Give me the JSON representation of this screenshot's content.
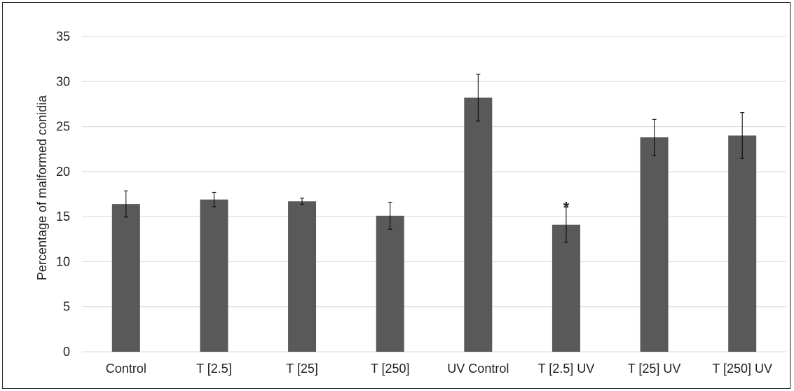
{
  "chart_data": {
    "type": "bar",
    "title": "",
    "xlabel": "",
    "ylabel": "Percentage of  malformed conidia",
    "categories": [
      "Control",
      "T [2.5]",
      "T [25]",
      "T [250]",
      "UV Control",
      "T [2.5] UV",
      "T [25] UV",
      "T [250] UV"
    ],
    "values": [
      16.4,
      16.9,
      16.7,
      15.1,
      28.2,
      14.1,
      23.8,
      24.0
    ],
    "error": [
      1.45,
      0.8,
      0.35,
      1.5,
      2.6,
      1.95,
      2.0,
      2.55
    ],
    "annotations": [
      {
        "category": "T [2.5] UV",
        "text": "*"
      }
    ],
    "ylim": [
      0,
      35
    ],
    "yticks": [
      0,
      5,
      10,
      15,
      20,
      25,
      30,
      35
    ],
    "grid": true,
    "bar_color": "#595959",
    "grid_color": "#d9d9d9",
    "error_color": "#000000"
  }
}
